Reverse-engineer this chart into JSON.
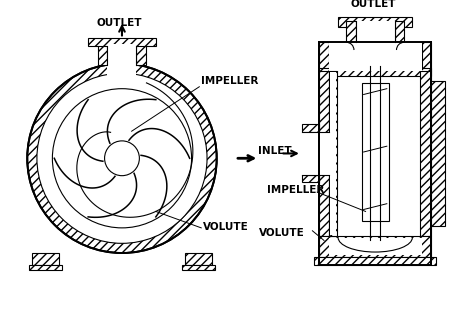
{
  "bg_color": "#ffffff",
  "lc": "#000000",
  "labels": {
    "outlet_left": "OUTLET",
    "outlet_right": "OUTLET",
    "impeller": "IMPELLER",
    "inlet": "INLET",
    "volute": "VOLUTE"
  },
  "font_size": 7.5,
  "lw": 0.8,
  "lw2": 1.4
}
